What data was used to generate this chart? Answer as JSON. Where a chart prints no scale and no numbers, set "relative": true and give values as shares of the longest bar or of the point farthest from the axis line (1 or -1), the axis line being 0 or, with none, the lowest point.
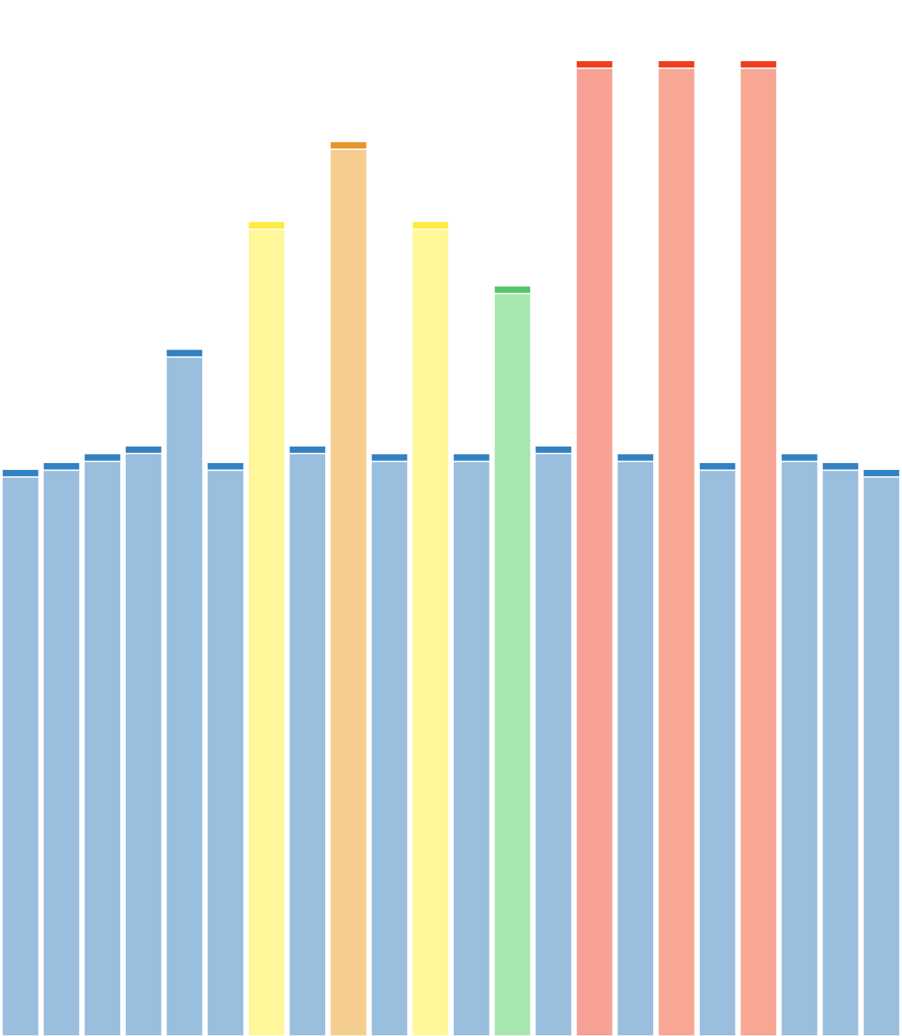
{
  "chart_data": {
    "type": "bar",
    "relative": true,
    "stacked": true,
    "categories": [
      null,
      null,
      null,
      null,
      null,
      null,
      null,
      null,
      null,
      null,
      null,
      null,
      null,
      null,
      null,
      null,
      null,
      null,
      null,
      null,
      null,
      null
    ],
    "series": [
      {
        "values": [
          0.573,
          0.58,
          0.589,
          0.597,
          0.696,
          0.58,
          0.827,
          0.597,
          0.909,
          0.589,
          0.827,
          0.589,
          0.761,
          0.597,
          0.992,
          0.589,
          0.992,
          0.58,
          0.992,
          0.589,
          0.58,
          0.573
        ],
        "colors": [
          "#99bede",
          "#99bede",
          "#99bede",
          "#99bede",
          "#99bede",
          "#99bede",
          "#fff799",
          "#99bede",
          "#f5cd8f",
          "#99bede",
          "#fff799",
          "#99bede",
          "#a8e6b0",
          "#99bede",
          "#f6a194",
          "#99bede",
          "#f9a795",
          "#99bede",
          "#f9a795",
          "#99bede",
          "#99bede",
          "#99bede"
        ]
      },
      {
        "values": [
          0.008,
          0.008,
          0.008,
          0.008,
          0.008,
          0.008,
          0.008,
          0.008,
          0.008,
          0.008,
          0.008,
          0.008,
          0.008,
          0.008,
          0.008,
          0.008,
          0.008,
          0.008,
          0.008,
          0.008,
          0.008,
          0.008
        ],
        "colors": [
          "#3282c2",
          "#3282c2",
          "#3282c2",
          "#3282c2",
          "#3282c2",
          "#3282c2",
          "#ffeb3b",
          "#3282c2",
          "#e8962a",
          "#3282c2",
          "#ffeb3b",
          "#3282c2",
          "#52c86a",
          "#3282c2",
          "#ee3d1f",
          "#3282c2",
          "#ee3d1f",
          "#3282c2",
          "#ee3d1f",
          "#3282c2",
          "#3282c2",
          "#3282c2"
        ]
      }
    ]
  }
}
